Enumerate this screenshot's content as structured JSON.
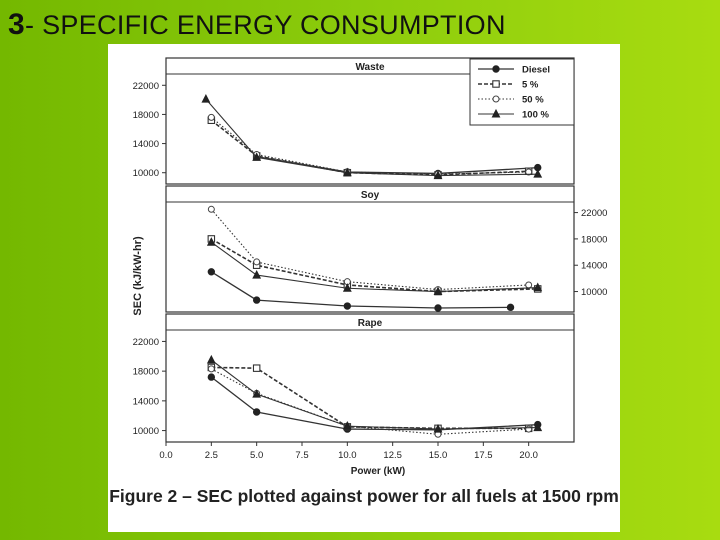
{
  "slide": {
    "title_number": "3",
    "title_text": "- SPECIFIC ENERGY CONSUMPTION"
  },
  "figure": {
    "caption": "Figure 2 – SEC plotted against power for all fuels at 1500 rpm"
  },
  "chart_data": {
    "type": "line",
    "ylabel": "SEC (kJ/kW-hr)",
    "xlabel": "Power (kW)",
    "x_ticks": [
      "0.0",
      "2.5",
      "5.0",
      "7.5",
      "10.0",
      "12.5",
      "15.0",
      "17.5",
      "20.0"
    ],
    "xlim": [
      0,
      22.5
    ],
    "legend": {
      "placement": "top-right",
      "entries": [
        "Diesel",
        "5 %",
        "50 %",
        "100 %"
      ]
    },
    "panels": [
      {
        "title": "Waste",
        "ylim": [
          9000,
          23000
        ],
        "y_ticks": [
          10000,
          14000,
          18000,
          22000
        ],
        "y_tick_labels": [
          "10000",
          "14000",
          "18000",
          "22000"
        ],
        "y_axis_side": "left",
        "series": [
          {
            "name": "Diesel",
            "x": [
              5.0,
              10.0,
              15.0,
              20.5
            ],
            "y": [
              12200,
              10100,
              9900,
              10700
            ]
          },
          {
            "name": "5 %",
            "x": [
              2.5,
              5.0,
              10.0,
              15.0,
              20.0
            ],
            "y": [
              17200,
              12300,
              10000,
              9700,
              10200
            ]
          },
          {
            "name": "50 %",
            "x": [
              2.5,
              5.0,
              10.0,
              15.0,
              20.0
            ],
            "y": [
              17600,
              12500,
              10100,
              9800,
              10100
            ]
          },
          {
            "name": "100 %",
            "x": [
              2.2,
              5.0,
              10.0,
              15.0,
              20.5
            ],
            "y": [
              20100,
              12100,
              10000,
              9600,
              9800
            ]
          }
        ]
      },
      {
        "title": "Soy",
        "ylim": [
          7500,
          23000
        ],
        "y_ticks": [
          10000,
          14000,
          18000,
          22000
        ],
        "y_tick_labels": [
          "10000",
          "14000",
          "18000",
          "22000"
        ],
        "y_axis_side": "right",
        "series": [
          {
            "name": "Diesel",
            "x": [
              2.5,
              5.0,
              10.0,
              15.0,
              19.0
            ],
            "y": [
              13000,
              8700,
              7800,
              7500,
              7600
            ]
          },
          {
            "name": "5 %",
            "x": [
              2.5,
              5.0,
              10.0,
              15.0,
              20.5
            ],
            "y": [
              18000,
              14000,
              11000,
              10000,
              10400
            ]
          },
          {
            "name": "50 %",
            "x": [
              2.5,
              5.0,
              10.0,
              15.0,
              20.0
            ],
            "y": [
              22500,
              14500,
              11500,
              10300,
              11000
            ]
          },
          {
            "name": "100 %",
            "x": [
              2.5,
              5.0,
              10.0,
              15.0,
              20.5
            ],
            "y": [
              17500,
              12500,
              10500,
              10000,
              10600
            ]
          }
        ]
      },
      {
        "title": "Rape",
        "ylim": [
          9000,
          23000
        ],
        "y_ticks": [
          10000,
          14000,
          18000,
          22000
        ],
        "y_tick_labels": [
          "10000",
          "14000",
          "18000",
          "22000"
        ],
        "y_axis_side": "left",
        "series": [
          {
            "name": "Diesel",
            "x": [
              2.5,
              5.0,
              10.0,
              15.0,
              20.5
            ],
            "y": [
              17200,
              12500,
              10200,
              10100,
              10800
            ]
          },
          {
            "name": "5 %",
            "x": [
              2.5,
              5.0,
              10.0,
              15.0,
              20.0
            ],
            "y": [
              18500,
              18400,
              10500,
              10300,
              10300
            ]
          },
          {
            "name": "50 %",
            "x": [
              2.5,
              5.0,
              10.0,
              15.0,
              20.0
            ],
            "y": [
              18300,
              15000,
              10600,
              9500,
              10200
            ]
          },
          {
            "name": "100 %",
            "x": [
              2.5,
              5.0,
              10.0,
              15.0,
              20.5
            ],
            "y": [
              19500,
              14900,
              10600,
              10200,
              10400
            ]
          }
        ]
      }
    ]
  }
}
